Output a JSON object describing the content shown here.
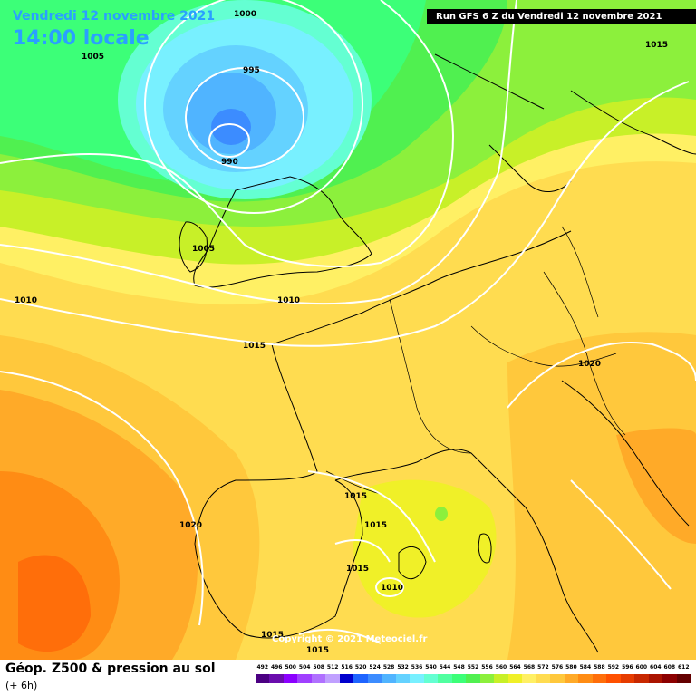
{
  "header": {
    "date": "Vendredi 12 novembre 2021",
    "time": "14:00 locale",
    "run": "Run GFS 6 Z du Vendredi 12 novembre 2021"
  },
  "copyright": "Copyright © 2021 Meteociel.fr",
  "footer": {
    "title": "Géop. Z500 & pression au sol",
    "subtitle": "(+ 6h)"
  },
  "legend": {
    "labels": [
      "492",
      "496",
      "500",
      "504",
      "508",
      "512",
      "516",
      "520",
      "524",
      "528",
      "532",
      "536",
      "540",
      "544",
      "548",
      "552",
      "556",
      "560",
      "564",
      "568",
      "572",
      "576",
      "580",
      "584",
      "588",
      "592",
      "596",
      "600",
      "604",
      "608",
      "612"
    ],
    "colors": [
      "#4b0082",
      "#6a0dad",
      "#8b00ff",
      "#a040ff",
      "#b070ff",
      "#c0a0ff",
      "#0000cd",
      "#1e64ff",
      "#3c8cff",
      "#50b4ff",
      "#64d2ff",
      "#78f0ff",
      "#64ffd2",
      "#50ffa0",
      "#3cff78",
      "#50f050",
      "#8cf03c",
      "#c8f028",
      "#f0f028",
      "#fff064",
      "#ffdc50",
      "#ffc83c",
      "#ffaa28",
      "#ff8c14",
      "#ff6e0a",
      "#ff5000",
      "#e63c00",
      "#c82800",
      "#aa1400",
      "#8c0000",
      "#640000"
    ]
  },
  "isobars": {
    "labels": [
      "1000",
      "1005",
      "995",
      "990",
      "1005",
      "1010",
      "1010",
      "1015",
      "1020",
      "1015",
      "1020",
      "1015",
      "1015",
      "1010",
      "1015",
      "1015",
      "1015"
    ]
  }
}
